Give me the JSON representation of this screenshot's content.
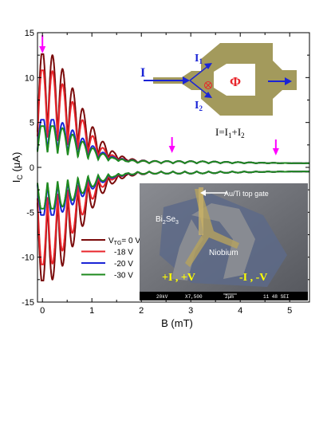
{
  "chart_data": {
    "type": "line",
    "xlabel_main": "B",
    "xlabel_unit": "(mT)",
    "ylabel_main": "I",
    "ylabel_sub": "C",
    "ylabel_unit": "(μA)",
    "xlim": [
      -0.1,
      5.4
    ],
    "ylim": [
      -15,
      15
    ],
    "xticks": [
      "0",
      "1",
      "2",
      "3",
      "4",
      "5"
    ],
    "xtick_values": [
      0,
      1,
      2,
      3,
      4,
      5
    ],
    "yticks": [
      "15",
      "10",
      "5",
      "0",
      "-5",
      "-10",
      "-15"
    ],
    "ytick_values": [
      15,
      10,
      5,
      0,
      -5,
      -10,
      -15
    ],
    "markers_x": [
      0.0,
      2.62,
      4.72
    ],
    "series": [
      {
        "name": "= 0 V",
        "prefix": "V",
        "sub": "TG",
        "color": "#7a0a0a",
        "i0_pos": 12.6,
        "period": 0.205,
        "decay": 0.95,
        "offset": 0.0
      },
      {
        "name": "-18 V",
        "prefix": "",
        "sub": "",
        "color": "#e8252b",
        "i0_pos": 10.8,
        "period": 0.205,
        "decay": 0.9,
        "offset": 0.3
      },
      {
        "name": "-20 V",
        "prefix": "",
        "sub": "",
        "color": "#1a24d6",
        "i0_pos": 5.3,
        "period": 0.205,
        "decay": 1.0,
        "offset": 0.15
      },
      {
        "name": "-30 V",
        "prefix": "",
        "sub": "",
        "color": "#1e8a1e",
        "i0_pos": 4.6,
        "period": 0.205,
        "decay": 1.0,
        "offset": 0.1
      }
    ],
    "device_inset": {
      "current_in": "I",
      "branch1": "I",
      "branch1_sub": "1",
      "branch2": "I",
      "branch2_sub": "2",
      "flux": "Φ",
      "formula_prefix": "I=I",
      "formula_sub1": "1",
      "formula_plus": "+I",
      "formula_sub2": "2"
    },
    "sem_inset": {
      "gate_label": "Au/Ti top gate",
      "material_main": "Bi",
      "material_sub1": "2",
      "material_mid": "Se",
      "material_sub2": "3",
      "electrode_label": "Niobium",
      "left_contact": "+I , +V",
      "right_contact": "-I , -V",
      "info_bar": [
        "20kV",
        "X7,500",
        "2μm",
        "11 48 SEI"
      ]
    }
  },
  "colors": {
    "marker": "#ff00ff",
    "device": "#a39a5c",
    "arrow": "#1a24d6",
    "flux": "#e8252b",
    "sem_label": "#ffff00"
  }
}
